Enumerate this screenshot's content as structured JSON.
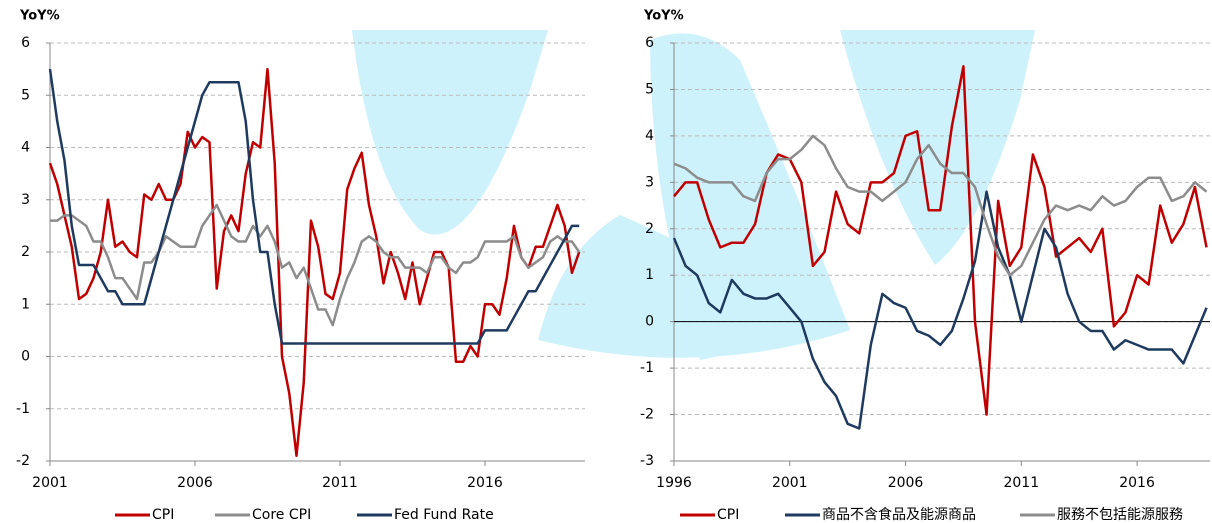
{
  "chart_data": [
    {
      "type": "line",
      "y_label": "YoY%",
      "x": [
        2001,
        2001.25,
        2001.5,
        2001.75,
        2002,
        2002.25,
        2002.5,
        2002.75,
        2003,
        2003.25,
        2003.5,
        2003.75,
        2004,
        2004.25,
        2004.5,
        2004.75,
        2005,
        2005.25,
        2005.5,
        2005.75,
        2006,
        2006.25,
        2006.5,
        2006.75,
        2007,
        2007.25,
        2007.5,
        2007.75,
        2008,
        2008.25,
        2008.5,
        2008.75,
        2009,
        2009.25,
        2009.5,
        2009.75,
        2010,
        2010.25,
        2010.5,
        2010.75,
        2011,
        2011.25,
        2011.5,
        2011.75,
        2012,
        2012.25,
        2012.5,
        2012.75,
        2013,
        2013.25,
        2013.5,
        2013.75,
        2014,
        2014.25,
        2014.5,
        2014.75,
        2015,
        2015.25,
        2015.5,
        2015.75,
        2016,
        2016.25,
        2016.5,
        2016.75,
        2017,
        2017.25,
        2017.5,
        2017.75,
        2018,
        2018.25,
        2018.5,
        2018.75,
        2019,
        2019.25
      ],
      "series": [
        {
          "name": "CPI",
          "color": "#c00000",
          "values": [
            3.7,
            3.3,
            2.7,
            2.1,
            1.1,
            1.2,
            1.5,
            2.0,
            3.0,
            2.1,
            2.2,
            2.0,
            1.9,
            3.1,
            3.0,
            3.3,
            3.0,
            3.0,
            3.3,
            4.3,
            4.0,
            4.2,
            4.1,
            1.3,
            2.4,
            2.7,
            2.4,
            3.5,
            4.1,
            4.0,
            5.5,
            3.7,
            0.0,
            -0.7,
            -1.9,
            -0.5,
            2.6,
            2.1,
            1.2,
            1.1,
            1.6,
            3.2,
            3.6,
            3.9,
            2.9,
            2.3,
            1.4,
            2.0,
            1.6,
            1.1,
            1.8,
            1.0,
            1.5,
            2.0,
            2.0,
            1.7,
            -0.1,
            -0.1,
            0.2,
            0.0,
            1.0,
            1.0,
            0.8,
            1.5,
            2.5,
            1.9,
            1.7,
            2.1,
            2.1,
            2.5,
            2.9,
            2.5,
            1.6,
            2.0
          ]
        },
        {
          "name": "Core CPI",
          "color": "#8c8c8c",
          "values": [
            2.6,
            2.6,
            2.7,
            2.7,
            2.6,
            2.5,
            2.2,
            2.2,
            1.9,
            1.5,
            1.5,
            1.3,
            1.1,
            1.8,
            1.8,
            2.0,
            2.3,
            2.2,
            2.1,
            2.1,
            2.1,
            2.5,
            2.7,
            2.9,
            2.6,
            2.3,
            2.2,
            2.2,
            2.5,
            2.3,
            2.5,
            2.2,
            1.7,
            1.8,
            1.5,
            1.7,
            1.3,
            0.9,
            0.9,
            0.6,
            1.1,
            1.5,
            1.8,
            2.2,
            2.3,
            2.2,
            2.0,
            1.9,
            1.9,
            1.7,
            1.7,
            1.7,
            1.6,
            1.9,
            1.9,
            1.7,
            1.6,
            1.8,
            1.8,
            1.9,
            2.2,
            2.2,
            2.2,
            2.2,
            2.3,
            1.9,
            1.7,
            1.8,
            1.9,
            2.2,
            2.3,
            2.2,
            2.2,
            2.0
          ]
        },
        {
          "name": "Fed Fund Rate",
          "color": "#1f3a5f",
          "values": [
            5.5,
            4.5,
            3.75,
            2.5,
            1.75,
            1.75,
            1.75,
            1.5,
            1.25,
            1.25,
            1.0,
            1.0,
            1.0,
            1.0,
            1.5,
            2.0,
            2.5,
            3.0,
            3.5,
            4.0,
            4.5,
            5.0,
            5.25,
            5.25,
            5.25,
            5.25,
            5.25,
            4.5,
            3.0,
            2.0,
            2.0,
            1.0,
            0.25,
            0.25,
            0.25,
            0.25,
            0.25,
            0.25,
            0.25,
            0.25,
            0.25,
            0.25,
            0.25,
            0.25,
            0.25,
            0.25,
            0.25,
            0.25,
            0.25,
            0.25,
            0.25,
            0.25,
            0.25,
            0.25,
            0.25,
            0.25,
            0.25,
            0.25,
            0.25,
            0.25,
            0.5,
            0.5,
            0.5,
            0.5,
            0.75,
            1.0,
            1.25,
            1.25,
            1.5,
            1.75,
            2.0,
            2.25,
            2.5,
            2.5
          ]
        }
      ],
      "xlim": [
        2001,
        2019.45
      ],
      "xticks": [
        2001,
        2006,
        2011,
        2016
      ],
      "ylim": [
        -2,
        6
      ],
      "yticks": [
        -2,
        -1,
        0,
        1,
        2,
        3,
        4,
        5,
        6
      ],
      "grid": true,
      "zeroline": false
    },
    {
      "type": "line",
      "y_label": "YoY%",
      "x": [
        1996,
        1996.5,
        1997,
        1997.5,
        1998,
        1998.5,
        1999,
        1999.5,
        2000,
        2000.5,
        2001,
        2001.5,
        2002,
        2002.5,
        2003,
        2003.5,
        2004,
        2004.5,
        2005,
        2005.5,
        2006,
        2006.5,
        2007,
        2007.5,
        2008,
        2008.5,
        2009,
        2009.5,
        2010,
        2010.5,
        2011,
        2011.5,
        2012,
        2012.5,
        2013,
        2013.5,
        2014,
        2014.5,
        2015,
        2015.5,
        2016,
        2016.5,
        2017,
        2017.5,
        2018,
        2018.5,
        2019
      ],
      "series": [
        {
          "name": "CPI",
          "color": "#c00000",
          "values": [
            2.7,
            3.0,
            3.0,
            2.2,
            1.6,
            1.7,
            1.7,
            2.1,
            3.2,
            3.6,
            3.5,
            3.0,
            1.2,
            1.5,
            2.8,
            2.1,
            1.9,
            3.0,
            3.0,
            3.2,
            4.0,
            4.1,
            2.4,
            2.4,
            4.2,
            5.5,
            0.0,
            -2.0,
            2.6,
            1.2,
            1.6,
            3.6,
            2.9,
            1.4,
            1.6,
            1.8,
            1.5,
            2.0,
            -0.1,
            0.2,
            1.0,
            0.8,
            2.5,
            1.7,
            2.1,
            2.9,
            1.6
          ]
        },
        {
          "name": "商品不含食品及能源商品",
          "color": "#1f3a5f",
          "values": [
            1.8,
            1.2,
            1.0,
            0.4,
            0.2,
            0.9,
            0.6,
            0.5,
            0.5,
            0.6,
            0.3,
            0.0,
            -0.8,
            -1.3,
            -1.6,
            -2.2,
            -2.3,
            -0.5,
            0.6,
            0.4,
            0.3,
            -0.2,
            -0.3,
            -0.5,
            -0.2,
            0.5,
            1.3,
            2.8,
            1.6,
            1.0,
            0.0,
            1.0,
            2.0,
            1.6,
            0.6,
            0.0,
            -0.2,
            -0.2,
            -0.6,
            -0.4,
            -0.5,
            -0.6,
            -0.6,
            -0.6,
            -0.9,
            -0.3,
            0.3
          ]
        },
        {
          "name": "服務不包括能源服務",
          "color": "#8c8c8c",
          "values": [
            3.4,
            3.3,
            3.1,
            3.0,
            3.0,
            3.0,
            2.7,
            2.6,
            3.2,
            3.5,
            3.5,
            3.7,
            4.0,
            3.8,
            3.3,
            2.9,
            2.8,
            2.8,
            2.6,
            2.8,
            3.0,
            3.5,
            3.8,
            3.4,
            3.2,
            3.2,
            2.9,
            2.1,
            1.4,
            1.0,
            1.2,
            1.7,
            2.2,
            2.5,
            2.4,
            2.5,
            2.4,
            2.7,
            2.5,
            2.6,
            2.9,
            3.1,
            3.1,
            2.6,
            2.7,
            3.0,
            2.8
          ]
        }
      ],
      "xlim": [
        1996,
        2019.15
      ],
      "xticks": [
        1996,
        2001,
        2006,
        2011,
        2016
      ],
      "ylim": [
        -3,
        6
      ],
      "yticks": [
        -3,
        -2,
        -1,
        0,
        1,
        2,
        3,
        4,
        5,
        6
      ],
      "grid": true,
      "zeroline": true
    }
  ]
}
